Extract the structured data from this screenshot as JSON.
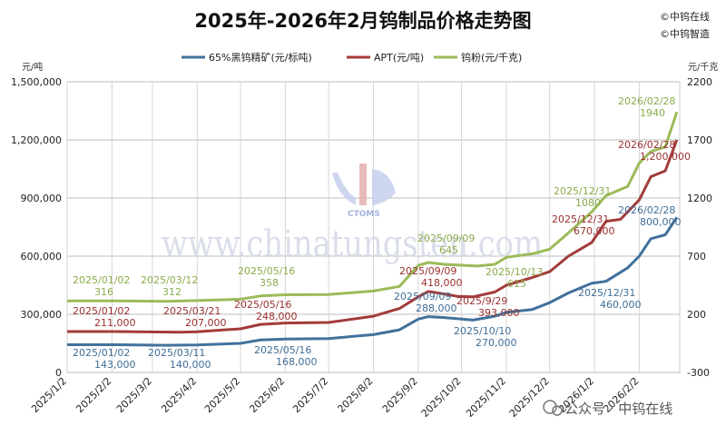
{
  "title": "2025年-2026年2月钨制品价格走势图",
  "brand": [
    "©中钨在线",
    "©中钨智造"
  ],
  "watermark": {
    "text": "www.chinatungsten.com",
    "logo": "CTOMS"
  },
  "wechat": "公众号 · 中钨在线",
  "chart_data": {
    "type": "line",
    "title": "2025年-2026年2月钨制品价格走势图",
    "left_unit": "元/吨",
    "right_unit": "元/千克",
    "left_axis": {
      "min": 0,
      "max": 1500000,
      "ticks": [
        0,
        300000,
        600000,
        900000,
        1200000,
        1500000
      ],
      "tick_labels": [
        "0",
        "300,000",
        "600,000",
        "900,000",
        "1,200,000",
        "1,500,000"
      ]
    },
    "right_axis": {
      "min": -300,
      "max": 2200,
      "ticks": [
        -300,
        200,
        700,
        1200,
        1700,
        2200
      ],
      "tick_labels": [
        "-300",
        "200",
        "700",
        "1200",
        "1700",
        "2200"
      ]
    },
    "x_categories": [
      "2025/1/2",
      "2025/2/2",
      "2025/3/2",
      "2025/4/2",
      "2025/5/2",
      "2025/6/2",
      "2025/7/2",
      "2025/8/2",
      "2025/9/2",
      "2025/10/2",
      "2025/11/2",
      "2025/12/2",
      "2026/1/2",
      "2026/2/2"
    ],
    "grid": true,
    "legend_position": "top",
    "series": [
      {
        "name": "65%黑钨精矿(元/标吨)",
        "axis": "left",
        "color": "#41719c",
        "points": [
          [
            "2025/01/02",
            143000
          ],
          [
            "2025/02/02",
            143000
          ],
          [
            "2025/03/11",
            140000
          ],
          [
            "2025/04/02",
            142000
          ],
          [
            "2025/05/02",
            150000
          ],
          [
            "2025/05/16",
            168000
          ],
          [
            "2025/06/02",
            172000
          ],
          [
            "2025/07/02",
            175000
          ],
          [
            "2025/08/02",
            195000
          ],
          [
            "2025/08/20",
            220000
          ],
          [
            "2025/09/02",
            275000
          ],
          [
            "2025/09/09",
            288000
          ],
          [
            "2025/09/20",
            283000
          ],
          [
            "2025/10/02",
            275000
          ],
          [
            "2025/10/10",
            270000
          ],
          [
            "2025/10/25",
            290000
          ],
          [
            "2025/11/02",
            310000
          ],
          [
            "2025/11/20",
            325000
          ],
          [
            "2025/12/02",
            360000
          ],
          [
            "2025/12/15",
            410000
          ],
          [
            "2025/12/31",
            460000
          ],
          [
            "2026/01/10",
            470000
          ],
          [
            "2026/01/25",
            540000
          ],
          [
            "2026/02/02",
            600000
          ],
          [
            "2026/02/10",
            690000
          ],
          [
            "2026/02/20",
            710000
          ],
          [
            "2026/02/28",
            800000
          ]
        ]
      },
      {
        "name": "APT(元/吨)",
        "axis": "left",
        "color": "#a33b3b",
        "points": [
          [
            "2025/01/02",
            211000
          ],
          [
            "2025/02/02",
            211000
          ],
          [
            "2025/03/21",
            207000
          ],
          [
            "2025/04/02",
            210000
          ],
          [
            "2025/05/02",
            225000
          ],
          [
            "2025/05/16",
            248000
          ],
          [
            "2025/06/02",
            255000
          ],
          [
            "2025/07/02",
            258000
          ],
          [
            "2025/08/02",
            290000
          ],
          [
            "2025/08/20",
            330000
          ],
          [
            "2025/09/02",
            390000
          ],
          [
            "2025/09/09",
            418000
          ],
          [
            "2025/09/20",
            405000
          ],
          [
            "2025/09/29",
            393000
          ],
          [
            "2025/10/10",
            390000
          ],
          [
            "2025/10/25",
            415000
          ],
          [
            "2025/11/02",
            450000
          ],
          [
            "2025/11/20",
            490000
          ],
          [
            "2025/12/02",
            520000
          ],
          [
            "2025/12/15",
            600000
          ],
          [
            "2025/12/31",
            670000
          ],
          [
            "2026/01/10",
            780000
          ],
          [
            "2026/01/20",
            790000
          ],
          [
            "2026/02/02",
            890000
          ],
          [
            "2026/02/10",
            1010000
          ],
          [
            "2026/02/20",
            1040000
          ],
          [
            "2026/02/28",
            1200000
          ]
        ]
      },
      {
        "name": "钨粉(元/千克)",
        "axis": "right",
        "color": "#9bbb59",
        "points": [
          [
            "2025/01/02",
            316
          ],
          [
            "2025/02/02",
            316
          ],
          [
            "2025/03/12",
            312
          ],
          [
            "2025/04/02",
            318
          ],
          [
            "2025/05/02",
            330
          ],
          [
            "2025/05/16",
            358
          ],
          [
            "2025/06/02",
            368
          ],
          [
            "2025/07/02",
            370
          ],
          [
            "2025/08/02",
            400
          ],
          [
            "2025/08/20",
            440
          ],
          [
            "2025/09/02",
            620
          ],
          [
            "2025/09/09",
            645
          ],
          [
            "2025/09/20",
            630
          ],
          [
            "2025/10/13",
            615
          ],
          [
            "2025/10/25",
            630
          ],
          [
            "2025/11/02",
            690
          ],
          [
            "2025/11/20",
            720
          ],
          [
            "2025/12/02",
            760
          ],
          [
            "2025/12/15",
            900
          ],
          [
            "2025/12/31",
            1080
          ],
          [
            "2026/01/10",
            1220
          ],
          [
            "2026/01/25",
            1300
          ],
          [
            "2026/02/02",
            1500
          ],
          [
            "2026/02/10",
            1600
          ],
          [
            "2026/02/20",
            1640
          ],
          [
            "2026/02/28",
            1940
          ]
        ]
      }
    ],
    "annotations": [
      {
        "lines": [
          "2025/01/02",
          "316"
        ],
        "color": "#8aac4a"
      },
      {
        "lines": [
          "2025/03/12",
          "312"
        ],
        "color": "#8aac4a"
      },
      {
        "lines": [
          "2025/05/16",
          "358"
        ],
        "color": "#8aac4a"
      },
      {
        "lines": [
          "2025/09/09",
          "645"
        ],
        "color": "#8aac4a"
      },
      {
        "lines": [
          "2025/10/13",
          "615"
        ],
        "color": "#8aac4a"
      },
      {
        "lines": [
          "2025/12/31",
          "1080"
        ],
        "color": "#8aac4a"
      },
      {
        "lines": [
          "2026/02/28",
          "1940"
        ],
        "color": "#8aac4a"
      },
      {
        "lines": [
          "2025/01/02",
          "211,000"
        ],
        "color": "#9b2f2f"
      },
      {
        "lines": [
          "2025/03/21",
          "207,000"
        ],
        "color": "#9b2f2f"
      },
      {
        "lines": [
          "2025/05/16",
          "248,000"
        ],
        "color": "#9b2f2f"
      },
      {
        "lines": [
          "2025/09/09",
          "418,000"
        ],
        "color": "#9b2f2f"
      },
      {
        "lines": [
          "2025/9/29",
          "393,000"
        ],
        "color": "#9b2f2f"
      },
      {
        "lines": [
          "2025/12/31",
          "670,000"
        ],
        "color": "#9b2f2f"
      },
      {
        "lines": [
          "2026/02/28",
          "1,200,000"
        ],
        "color": "#9b2f2f"
      },
      {
        "lines": [
          "2025/01/02",
          "143,000"
        ],
        "color": "#3f6e96"
      },
      {
        "lines": [
          "2025/03/11",
          "140,000"
        ],
        "color": "#3f6e96"
      },
      {
        "lines": [
          "2025/05/16",
          "168,000"
        ],
        "color": "#3f6e96"
      },
      {
        "lines": [
          "2025/09/09",
          "288,000"
        ],
        "color": "#3f6e96"
      },
      {
        "lines": [
          "2025/10/10",
          "270,000"
        ],
        "color": "#3f6e96"
      },
      {
        "lines": [
          "2025/12/31",
          "460,000"
        ],
        "color": "#3f6e96"
      },
      {
        "lines": [
          "2026/02/28",
          "800,000"
        ],
        "color": "#3f6e96"
      }
    ]
  }
}
